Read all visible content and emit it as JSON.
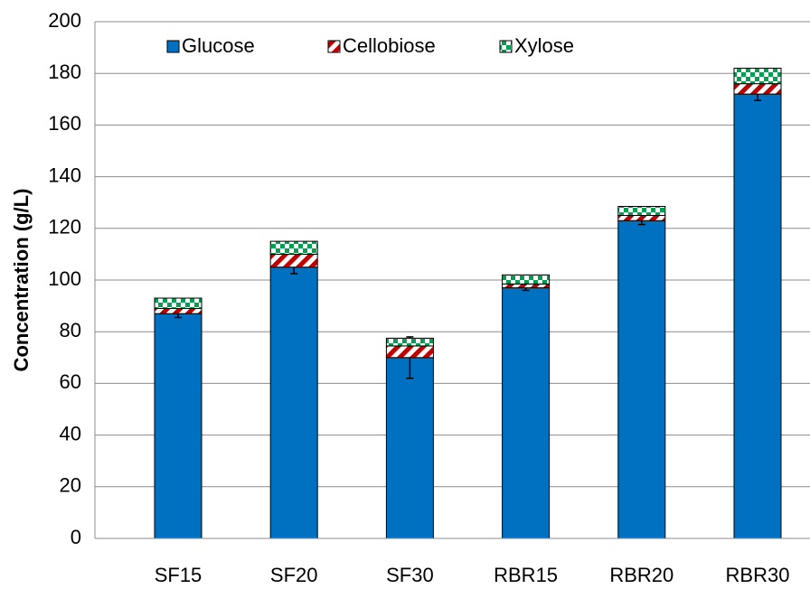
{
  "chart_data": {
    "type": "stacked_bar",
    "ylabel": "Concentration (g/L)",
    "categories": [
      "SF15",
      "SF20",
      "SF30",
      "RBR15",
      "RBR20",
      "RBR30"
    ],
    "series": [
      {
        "name": "Glucose",
        "color": "#0070c0",
        "values": [
          87,
          105,
          70,
          97,
          123,
          172
        ],
        "errors": [
          1.5,
          2.5,
          8,
          1,
          1.5,
          2.5
        ]
      },
      {
        "name": "Cellobiose",
        "color": "#c00000",
        "values": [
          2,
          5,
          4.5,
          1.5,
          2,
          4
        ]
      },
      {
        "name": "Xylose",
        "color": "#00a050",
        "values": [
          4,
          5,
          3,
          3.5,
          3.5,
          6
        ]
      }
    ],
    "ylim": [
      0,
      200
    ],
    "yticks": [
      0,
      20,
      40,
      60,
      80,
      100,
      120,
      140,
      160,
      180,
      200
    ],
    "grid": true
  }
}
